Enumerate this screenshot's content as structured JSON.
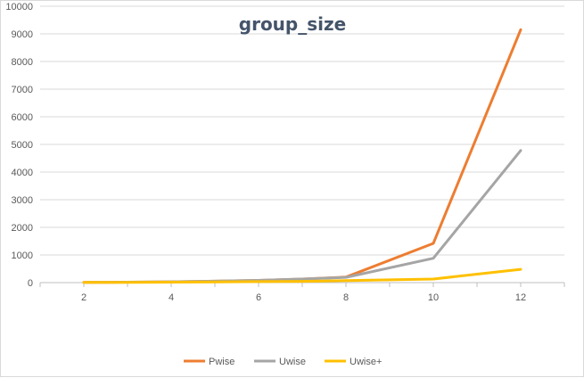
{
  "chart_data": {
    "type": "line",
    "title": "group_size",
    "xlabel": "",
    "ylabel": "",
    "x": [
      2,
      3,
      4,
      5,
      6,
      7,
      8,
      10,
      12
    ],
    "x_ticks": [
      2,
      4,
      6,
      8,
      10,
      12
    ],
    "x_tick_labels": [
      "2",
      "4",
      "6",
      "8",
      "10",
      "12"
    ],
    "y_ticks": [
      0,
      1000,
      2000,
      3000,
      4000,
      5000,
      6000,
      7000,
      8000,
      9000,
      10000
    ],
    "y_tick_labels": [
      "0",
      "1000",
      "2000",
      "3000",
      "4000",
      "5000",
      "6000",
      "7000",
      "8000",
      "9000",
      "10000"
    ],
    "xlim": [
      1,
      13
    ],
    "ylim": [
      0,
      10000
    ],
    "grid": true,
    "legend_position": "bottom",
    "series": [
      {
        "name": "Pwise",
        "color": "#ed7d31",
        "values": [
          5,
          15,
          30,
          50,
          80,
          130,
          200,
          1420,
          9150
        ]
      },
      {
        "name": "Uwise",
        "color": "#a5a5a5",
        "values": [
          5,
          15,
          30,
          50,
          80,
          130,
          190,
          880,
          4780
        ]
      },
      {
        "name": "Uwise+",
        "color": "#ffc000",
        "values": [
          5,
          10,
          15,
          25,
          35,
          45,
          70,
          130,
          480
        ]
      }
    ]
  }
}
